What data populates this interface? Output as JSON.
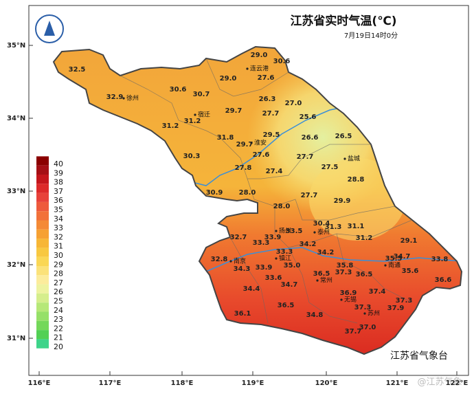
{
  "header": {
    "title": "江苏省实时气温(℃)",
    "subtitle": "7月19日14时0分"
  },
  "axes": {
    "latitude": [
      "35°N",
      "34°N",
      "33°N",
      "32°N",
      "31°N"
    ],
    "longitude": [
      "116°E",
      "117°E",
      "118°E",
      "119°E",
      "120°E",
      "121°E",
      "122°E"
    ]
  },
  "legend": {
    "labels": [
      40,
      39,
      38,
      37,
      36,
      35,
      34,
      33,
      32,
      31,
      30,
      29,
      28,
      27,
      26,
      25,
      24,
      23,
      22,
      21,
      20
    ],
    "colors": [
      "#8b0000",
      "#a50f15",
      "#c4161c",
      "#dd2a2a",
      "#e8423a",
      "#ee5a3c",
      "#f2713a",
      "#f48a36",
      "#f6a133",
      "#f7b636",
      "#f8c840",
      "#fad755",
      "#fbe27a",
      "#fcec9c",
      "#eef3a0",
      "#d5ee8c",
      "#b6e878",
      "#96e068",
      "#74d85a",
      "#52d055",
      "#3ed48a"
    ]
  },
  "stations": [
    "32.5",
    "29.0",
    "30.6",
    "29.0",
    "27.6",
    "30.6",
    "30.7",
    "32.9",
    "26.3",
    "27.0",
    "29.7",
    "27.7",
    "25.6",
    "31.2",
    "31.2",
    "31.8",
    "29.5",
    "26.6",
    "26.5",
    "29.7",
    "27.6",
    "30.3",
    "27.7",
    "27.8",
    "27.4",
    "27.5",
    "28.8",
    "30.9",
    "28.0",
    "27.7",
    "29.9",
    "28.0",
    "30.4",
    "31.3",
    "31.1",
    "33.5",
    "32.7",
    "33.9",
    "33.3",
    "34.2",
    "31.2",
    "29.1",
    "33.3",
    "34.2",
    "35.5",
    "34.7",
    "32.8",
    "35.0",
    "34.3",
    "33.9",
    "35.8",
    "33.8",
    "36.5",
    "37.3",
    "36.5",
    "35.6",
    "33.6",
    "34.7",
    "34.4",
    "36.6",
    "36.9",
    "37.4",
    "37.3",
    "37.9",
    "36.5",
    "37.3",
    "36.1",
    "34.8",
    "37.0",
    "37.7"
  ],
  "cities": [
    "连云港",
    "徐州",
    "宿迁",
    "淮安",
    "盐城",
    "扬州",
    "泰州",
    "南京",
    "镇江",
    "南通",
    "常州",
    "无锡",
    "苏州"
  ],
  "footer": "江苏省气象台",
  "watermark": "@江苏气象"
}
